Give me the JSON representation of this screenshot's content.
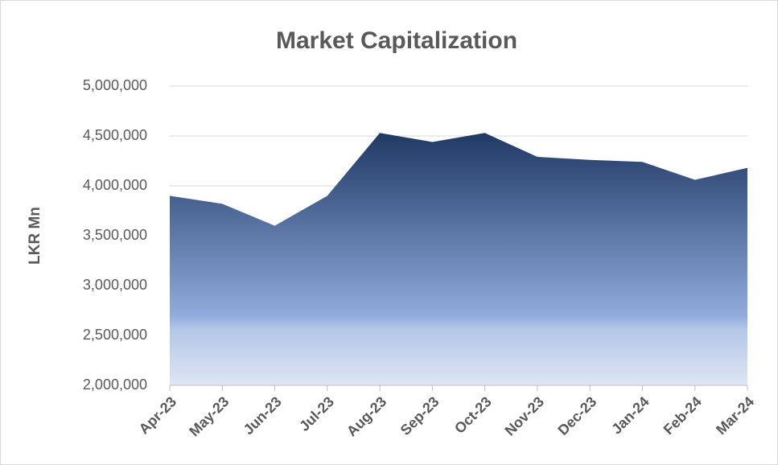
{
  "chart_data": {
    "type": "area",
    "title": "Market Capitalization",
    "y_label": "LKR Mn",
    "categories": [
      "Apr-23",
      "May-23",
      "Jun-23",
      "Jul-23",
      "Aug-23",
      "Sep-23",
      "Oct-23",
      "Nov-23",
      "Dec-23",
      "Jan-24",
      "Feb-24",
      "Mar-24"
    ],
    "series": [
      {
        "name": "Market Capitalization",
        "color": "#1f3864",
        "values": [
          3900000,
          3820000,
          3600000,
          3900000,
          4530000,
          4440000,
          4530000,
          4290000,
          4260000,
          4240000,
          4060000,
          4180000
        ]
      }
    ],
    "ylim": [
      2000000,
      5000000
    ],
    "yticks": [
      {
        "value": 2000000,
        "label": "2,000,000"
      },
      {
        "value": 2500000,
        "label": "2,500,000"
      },
      {
        "value": 3000000,
        "label": "3,000,000"
      },
      {
        "value": 3500000,
        "label": "3,500,000"
      },
      {
        "value": 4000000,
        "label": "4,000,000"
      },
      {
        "value": 4500000,
        "label": "4,500,000"
      },
      {
        "value": 5000000,
        "label": "5,000,000"
      }
    ],
    "grid": true
  }
}
